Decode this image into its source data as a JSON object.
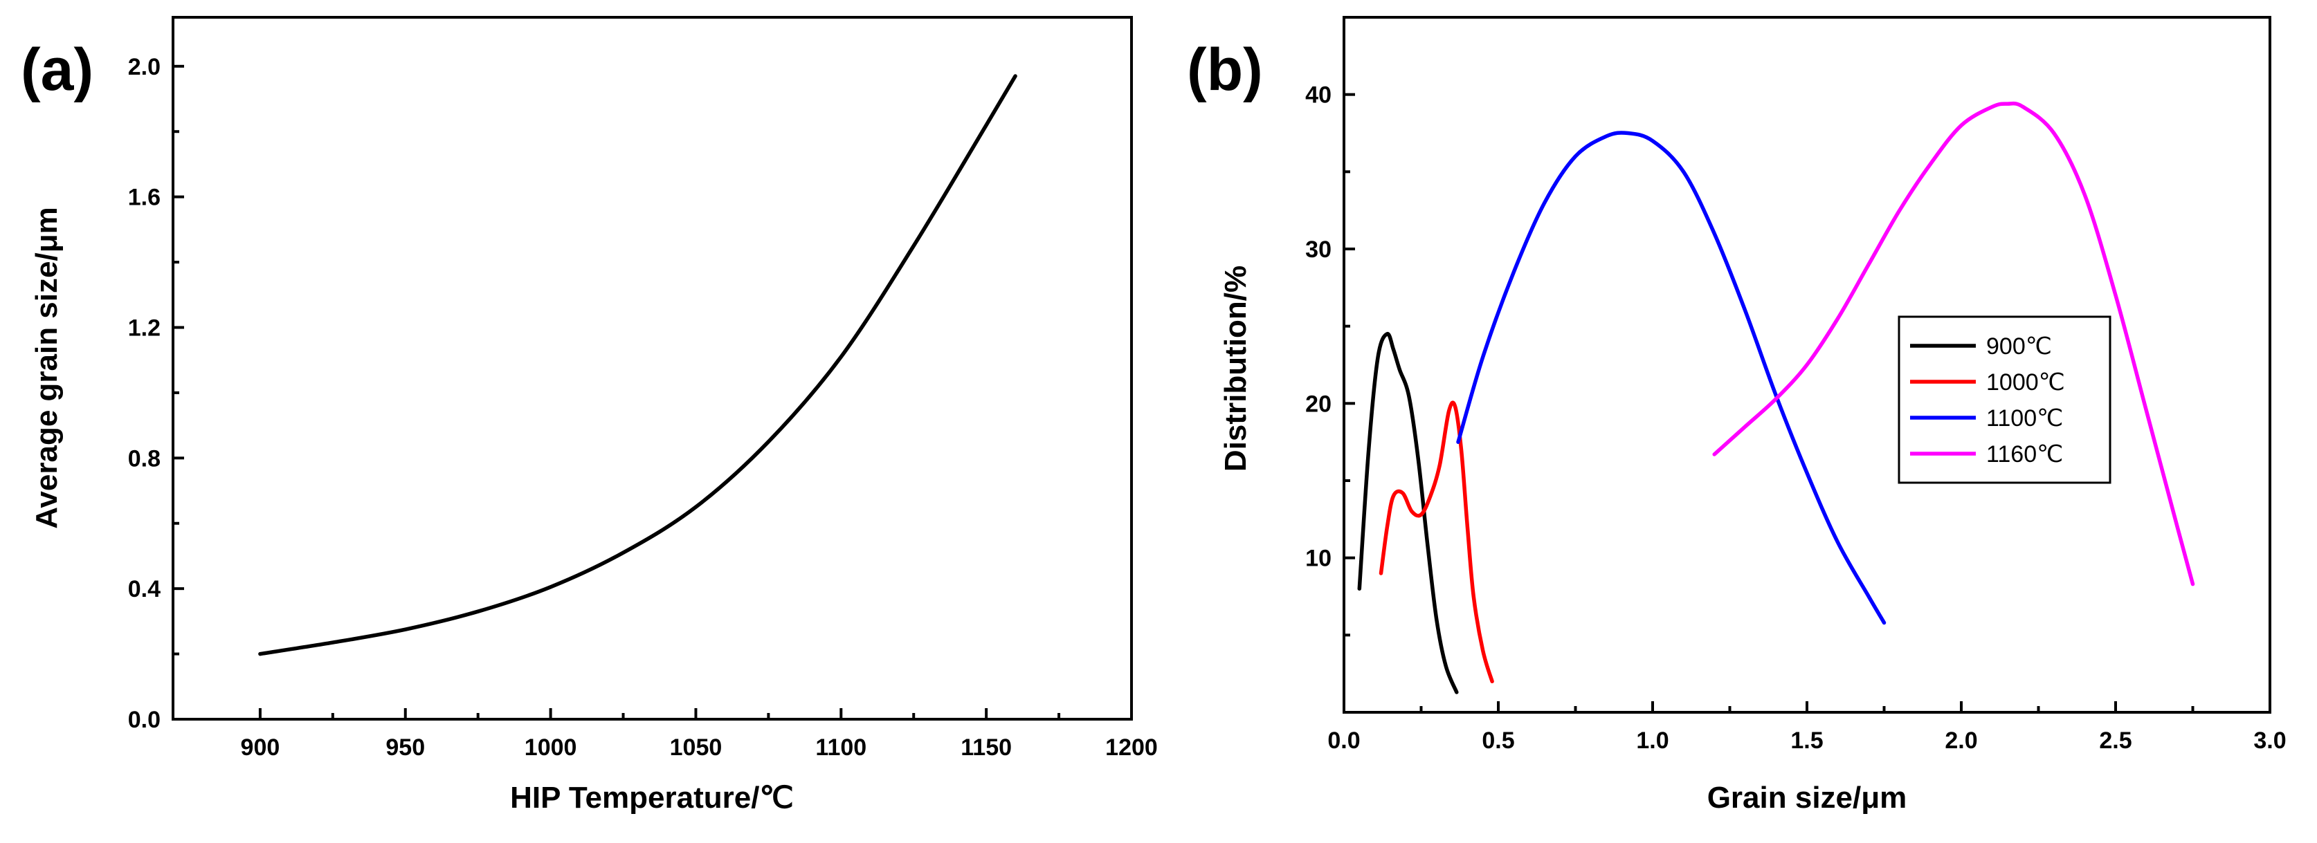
{
  "chart_data": [
    {
      "type": "line",
      "panel_label": "(a)",
      "xlabel": "HIP Temperature/℃",
      "ylabel": "Average grain size/μm",
      "xlim": [
        870,
        1200
      ],
      "ylim": [
        0,
        2.15
      ],
      "x_ticks": [
        900,
        950,
        1000,
        1050,
        1100,
        1150,
        1200
      ],
      "x_tick_labels": [
        "900",
        "950",
        "1000",
        "1050",
        "1100",
        "1150",
        "1200"
      ],
      "y_ticks": [
        0.0,
        0.4,
        0.8,
        1.2,
        1.6,
        2.0
      ],
      "y_tick_labels": [
        "0.0",
        "0.4",
        "0.8",
        "1.2",
        "1.6",
        "2.0"
      ],
      "series": [
        {
          "name": "Average grain size",
          "color": "#000000",
          "x": [
            900,
            925,
            950,
            975,
            1000,
            1025,
            1050,
            1075,
            1100,
            1125,
            1150,
            1160
          ],
          "y": [
            0.2,
            0.235,
            0.275,
            0.33,
            0.405,
            0.51,
            0.65,
            0.85,
            1.11,
            1.45,
            1.82,
            1.97
          ]
        }
      ]
    },
    {
      "type": "line",
      "panel_label": "(b)",
      "xlabel": "Grain size/μm",
      "ylabel": "Distribution/%",
      "xlim": [
        0.0,
        3.0
      ],
      "ylim": [
        0,
        45
      ],
      "x_ticks": [
        0.0,
        0.5,
        1.0,
        1.5,
        2.0,
        2.5,
        3.0
      ],
      "x_tick_labels": [
        "0.0",
        "0.5",
        "1.0",
        "1.5",
        "2.0",
        "2.5",
        "3.0"
      ],
      "y_ticks": [
        10,
        20,
        30,
        40
      ],
      "y_tick_labels": [
        "10",
        "20",
        "30",
        "40"
      ],
      "legend_position": "right",
      "series": [
        {
          "name": "900℃",
          "color": "#000000",
          "x": [
            0.05,
            0.08,
            0.11,
            0.14,
            0.16,
            0.18,
            0.21,
            0.24,
            0.27,
            0.3,
            0.33,
            0.365
          ],
          "y": [
            8.0,
            17.0,
            23.0,
            24.5,
            23.5,
            22.2,
            20.5,
            16.5,
            11.0,
            6.0,
            3.0,
            1.3
          ]
        },
        {
          "name": "1000℃",
          "color": "#ff0000",
          "x": [
            0.12,
            0.14,
            0.16,
            0.19,
            0.22,
            0.25,
            0.28,
            0.31,
            0.34,
            0.36,
            0.38,
            0.4,
            0.42,
            0.45,
            0.48
          ],
          "y": [
            9.0,
            12.0,
            14.0,
            14.2,
            13.0,
            12.8,
            14.0,
            16.0,
            19.5,
            19.8,
            17.0,
            12.0,
            7.5,
            4.0,
            2.0
          ]
        },
        {
          "name": "1100℃",
          "color": "#0000ff",
          "x": [
            0.37,
            0.45,
            0.55,
            0.65,
            0.75,
            0.85,
            0.92,
            1.0,
            1.1,
            1.2,
            1.3,
            1.4,
            1.5,
            1.6,
            1.7,
            1.75
          ],
          "y": [
            17.5,
            23.0,
            28.5,
            33.0,
            36.0,
            37.3,
            37.5,
            37.0,
            35.0,
            31.0,
            26.0,
            20.5,
            15.5,
            11.0,
            7.5,
            5.8
          ]
        },
        {
          "name": "1160℃",
          "color": "#ff00ff",
          "x": [
            1.2,
            1.3,
            1.4,
            1.5,
            1.6,
            1.7,
            1.8,
            1.9,
            2.0,
            2.1,
            2.15,
            2.2,
            2.3,
            2.4,
            2.5,
            2.6,
            2.7,
            2.75
          ],
          "y": [
            16.7,
            18.5,
            20.3,
            22.5,
            25.5,
            29.0,
            32.5,
            35.5,
            38.0,
            39.2,
            39.4,
            39.2,
            37.5,
            33.5,
            27.0,
            19.5,
            12.0,
            8.3
          ]
        }
      ]
    }
  ]
}
